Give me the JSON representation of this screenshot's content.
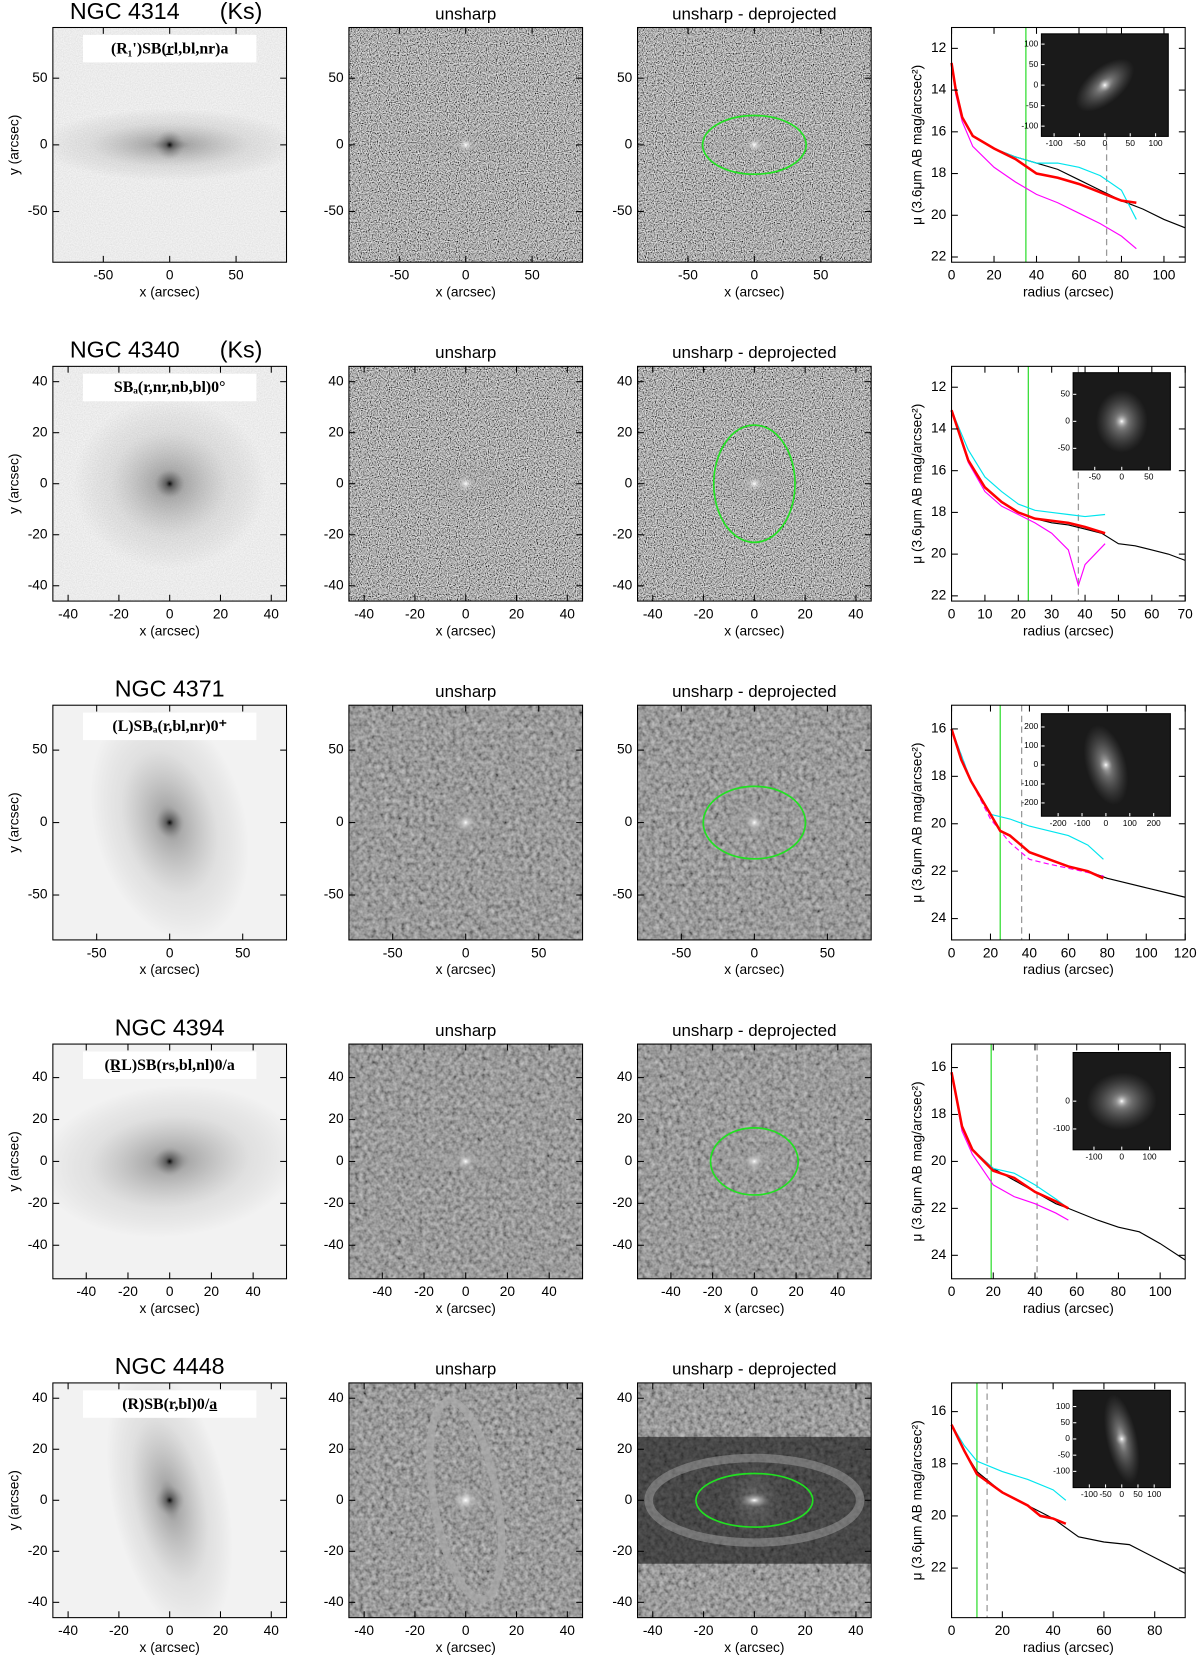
{
  "chart_data": [
    {
      "type": "image",
      "title": "NGC 4314",
      "band": "(Ks)",
      "annotation": "(R₁')SB(r̲l,bl,nr)a",
      "xlabel": "x (arcsec)",
      "ylabel": "y (arcsec)",
      "xlim": [
        -88,
        88
      ],
      "ylim": [
        -88,
        88
      ],
      "xticks": [
        -50,
        0,
        50
      ],
      "yticks": [
        -50,
        0,
        50
      ]
    },
    {
      "type": "image",
      "title": "unsharp",
      "xlabel": "x (arcsec)",
      "xlim": [
        -88,
        88
      ],
      "ylim": [
        -88,
        88
      ],
      "xticks": [
        -50,
        0,
        50
      ],
      "yticks": [
        -50,
        0,
        50
      ]
    },
    {
      "type": "image",
      "title": "unsharp - deprojected",
      "xlabel": "x (arcsec)",
      "xlim": [
        -88,
        88
      ],
      "ylim": [
        -88,
        88
      ],
      "xticks": [
        -50,
        0,
        50
      ],
      "yticks": [
        -50,
        0,
        50
      ],
      "ellipse": [
        39,
        22
      ]
    },
    {
      "type": "line",
      "xlabel": "radius (arcsec)",
      "ylabel": "μ (3.6μm AB mag/arcsec²)",
      "xlim": [
        0,
        110
      ],
      "ylim": [
        22.25,
        11
      ],
      "xticks": [
        0,
        20,
        40,
        60,
        80,
        100
      ],
      "yticks": [
        12,
        14,
        16,
        18,
        20,
        22
      ],
      "series": [
        {
          "color": "#000000",
          "x": [
            0,
            2,
            5,
            10,
            20,
            30,
            40,
            50,
            60,
            70,
            80,
            90,
            100,
            110
          ],
          "values": [
            12.7,
            14,
            15.3,
            16.2,
            16.8,
            17.2,
            17.5,
            17.8,
            18.3,
            18.8,
            19.3,
            19.7,
            20.2,
            20.6
          ]
        },
        {
          "color": "#ff00ff",
          "x": [
            0,
            2,
            5,
            10,
            20,
            30,
            40,
            50,
            60,
            70,
            80,
            87
          ],
          "values": [
            12.7,
            14.2,
            15.5,
            16.7,
            17.7,
            18.4,
            19,
            19.4,
            19.9,
            20.4,
            21,
            21.6
          ]
        },
        {
          "color": "#00e5ee",
          "x": [
            0,
            2,
            5,
            10,
            20,
            30,
            40,
            50,
            60,
            70,
            80,
            87
          ],
          "values": [
            12.7,
            14,
            15.3,
            16.2,
            16.8,
            17.2,
            17.5,
            17.5,
            17.7,
            18.1,
            18.8,
            20.2
          ]
        },
        {
          "color": "#ff0000",
          "x": [
            0,
            2,
            5,
            10,
            20,
            30,
            40,
            50,
            60,
            70,
            80,
            87
          ],
          "values": [
            12.7,
            14,
            15.3,
            16.2,
            16.8,
            17.3,
            18,
            18.2,
            18.5,
            18.9,
            19.3,
            19.4
          ]
        }
      ],
      "vlines": [
        {
          "value": 35,
          "color": "#33dd33"
        },
        {
          "value": 73,
          "color": "#999999",
          "linestyle": "dashed"
        }
      ],
      "inset": {
        "xlim": [
          -125,
          125
        ],
        "ylim": [
          -125,
          125
        ],
        "xticks": [
          -100,
          -50,
          0,
          50,
          100
        ],
        "yticks": [
          -100,
          -50,
          0,
          50,
          100
        ]
      }
    },
    {
      "type": "image",
      "title": "NGC 4340",
      "band": "(Ks)",
      "annotation": "SBₐ(r,nr,nb,bl)0°",
      "xlabel": "x (arcsec)",
      "ylabel": "y (arcsec)",
      "xlim": [
        -46,
        46
      ],
      "ylim": [
        -46,
        46
      ],
      "xticks": [
        -40,
        -20,
        0,
        20,
        40
      ],
      "yticks": [
        -40,
        -20,
        0,
        20,
        40
      ]
    },
    {
      "type": "image",
      "title": "unsharp",
      "xlabel": "x (arcsec)",
      "xlim": [
        -46,
        46
      ],
      "ylim": [
        -46,
        46
      ],
      "xticks": [
        -40,
        -20,
        0,
        20,
        40
      ],
      "yticks": [
        -40,
        -20,
        0,
        20,
        40
      ]
    },
    {
      "type": "image",
      "title": "unsharp - deprojected",
      "xlabel": "x (arcsec)",
      "xlim": [
        -46,
        46
      ],
      "ylim": [
        -46,
        46
      ],
      "xticks": [
        -40,
        -20,
        0,
        20,
        40
      ],
      "yticks": [
        -40,
        -20,
        0,
        20,
        40
      ],
      "ellipse": [
        16,
        23
      ]
    },
    {
      "type": "line",
      "xlabel": "radius (arcsec)",
      "ylabel": "μ (3.6μm AB mag/arcsec²)",
      "xlim": [
        0,
        70
      ],
      "ylim": [
        22.25,
        11
      ],
      "xticks": [
        0,
        10,
        20,
        30,
        40,
        50,
        60,
        70
      ],
      "yticks": [
        12,
        14,
        16,
        18,
        20,
        22
      ],
      "series": [
        {
          "color": "#000000",
          "x": [
            0,
            5,
            10,
            15,
            20,
            25,
            30,
            35,
            40,
            45,
            50,
            55,
            60,
            65,
            70
          ],
          "values": [
            13.1,
            15.5,
            16.8,
            17.5,
            18,
            18.3,
            18.5,
            18.6,
            18.8,
            19,
            19.5,
            19.6,
            19.8,
            20,
            20.3
          ]
        },
        {
          "color": "#ff00ff",
          "x": [
            0,
            5,
            10,
            15,
            20,
            25,
            30,
            35,
            38,
            40,
            46
          ],
          "values": [
            13.1,
            15.6,
            17,
            17.7,
            18.1,
            18.5,
            19,
            19.8,
            21.5,
            20.5,
            19.5
          ]
        },
        {
          "color": "#00e5ee",
          "x": [
            0,
            5,
            10,
            15,
            20,
            25,
            30,
            35,
            40,
            46
          ],
          "values": [
            13.1,
            15,
            16.3,
            17,
            17.6,
            17.9,
            18,
            18.1,
            18.2,
            18.1
          ]
        },
        {
          "color": "#ff0000",
          "x": [
            0,
            5,
            10,
            15,
            20,
            25,
            30,
            35,
            40,
            46
          ],
          "values": [
            13.1,
            15.5,
            16.8,
            17.5,
            18,
            18.3,
            18.4,
            18.5,
            18.7,
            19
          ]
        }
      ],
      "vlines": [
        {
          "value": 23,
          "color": "#33dd33"
        },
        {
          "value": 38,
          "color": "#999999",
          "linestyle": "dashed"
        }
      ],
      "inset": {
        "xlim": [
          -90,
          90
        ],
        "ylim": [
          -90,
          90
        ],
        "xticks": [
          -50,
          0,
          50
        ],
        "yticks": [
          -50,
          0,
          50
        ]
      }
    },
    {
      "type": "image",
      "title": "NGC 4371",
      "annotation": "(L)SBₐ(r,bl,nr)0⁺",
      "xlabel": "x (arcsec)",
      "ylabel": "y (arcsec)",
      "xlim": [
        -80,
        80
      ],
      "ylim": [
        -81,
        81
      ],
      "xticks": [
        -50,
        0,
        50
      ],
      "yticks": [
        -50,
        0,
        50
      ]
    },
    {
      "type": "image",
      "title": "unsharp",
      "xlabel": "x (arcsec)",
      "xlim": [
        -80,
        80
      ],
      "ylim": [
        -81,
        81
      ],
      "xticks": [
        -50,
        0,
        50
      ],
      "yticks": [
        -50,
        0,
        50
      ]
    },
    {
      "type": "image",
      "title": "unsharp - deprojected",
      "xlabel": "x (arcsec)",
      "xlim": [
        -80,
        80
      ],
      "ylim": [
        -81,
        81
      ],
      "xticks": [
        -50,
        0,
        50
      ],
      "yticks": [
        -50,
        0,
        50
      ],
      "ellipse": [
        35,
        25
      ]
    },
    {
      "type": "line",
      "xlabel": "radius (arcsec)",
      "ylabel": "μ (3.6μm AB mag/arcsec²)",
      "xlim": [
        0,
        120
      ],
      "ylim": [
        24.9,
        15
      ],
      "xticks": [
        0,
        20,
        40,
        60,
        80,
        100,
        120
      ],
      "yticks": [
        16,
        18,
        20,
        22,
        24
      ],
      "series": [
        {
          "color": "#000000",
          "x": [
            0,
            5,
            10,
            20,
            25,
            30,
            40,
            50,
            60,
            70,
            80,
            100,
            120
          ],
          "values": [
            16,
            17.3,
            18.2,
            19.6,
            20.3,
            20.5,
            21.2,
            21.5,
            21.8,
            22,
            22.3,
            22.7,
            23.1
          ]
        },
        {
          "color": "#ff00ff",
          "linestyle": "dashed",
          "x": [
            0,
            10,
            20,
            30,
            40,
            50,
            78
          ],
          "values": [
            16,
            18.2,
            19.8,
            20.8,
            21.5,
            21.7,
            22.2
          ]
        },
        {
          "color": "#00e5ee",
          "x": [
            0,
            10,
            20,
            30,
            40,
            50,
            60,
            70,
            78
          ],
          "values": [
            16,
            18.2,
            19.6,
            19.8,
            20.1,
            20.3,
            20.5,
            20.9,
            21.5
          ]
        },
        {
          "color": "#ff0000",
          "x": [
            0,
            5,
            10,
            20,
            25,
            30,
            40,
            50,
            60,
            70,
            78
          ],
          "values": [
            16,
            17.3,
            18.2,
            19.6,
            20.3,
            20.5,
            21.2,
            21.5,
            21.8,
            22,
            22.3
          ]
        }
      ],
      "vlines": [
        {
          "value": 25,
          "color": "#33dd33"
        },
        {
          "value": 36,
          "color": "#999999",
          "linestyle": "dashed"
        }
      ],
      "inset": {
        "xlim": [
          -270,
          270
        ],
        "ylim": [
          -270,
          270
        ],
        "xticks": [
          -200,
          -100,
          0,
          100,
          200
        ],
        "yticks": [
          -200,
          -100,
          0,
          100,
          200
        ]
      }
    },
    {
      "type": "image",
      "title": "NGC 4394",
      "annotation": "(R̲L)SB(rs,bl,nl)0/a",
      "xlabel": "x (arcsec)",
      "ylabel": "y (arcsec)",
      "xlim": [
        -56,
        56
      ],
      "ylim": [
        -56,
        56
      ],
      "xticks": [
        -40,
        -20,
        0,
        20,
        40
      ],
      "yticks": [
        -40,
        -20,
        0,
        20,
        40
      ]
    },
    {
      "type": "image",
      "title": "unsharp",
      "xlabel": "x (arcsec)",
      "xlim": [
        -56,
        56
      ],
      "ylim": [
        -56,
        56
      ],
      "xticks": [
        -40,
        -20,
        0,
        20,
        40
      ],
      "yticks": [
        -40,
        -20,
        0,
        20,
        40
      ]
    },
    {
      "type": "image",
      "title": "unsharp - deprojected",
      "xlabel": "x (arcsec)",
      "xlim": [
        -56,
        56
      ],
      "ylim": [
        -56,
        56
      ],
      "xticks": [
        -40,
        -20,
        0,
        20,
        40
      ],
      "yticks": [
        -40,
        -20,
        0,
        20,
        40
      ],
      "ellipse": [
        21,
        16
      ]
    },
    {
      "type": "line",
      "xlabel": "radius (arcsec)",
      "ylabel": "μ (3.6μm AB mag/arcsec²)",
      "xlim": [
        0,
        112
      ],
      "ylim": [
        25,
        15
      ],
      "xticks": [
        0,
        20,
        40,
        60,
        80,
        100
      ],
      "yticks": [
        16,
        18,
        20,
        22,
        24
      ],
      "series": [
        {
          "color": "#000000",
          "x": [
            0,
            5,
            10,
            20,
            30,
            40,
            50,
            56,
            70,
            80,
            90,
            100,
            112
          ],
          "values": [
            16.2,
            18.5,
            19.5,
            20.3,
            20.8,
            21.3,
            21.8,
            22,
            22.5,
            22.8,
            23,
            23.5,
            24.2
          ]
        },
        {
          "color": "#ff00ff",
          "x": [
            0,
            5,
            10,
            20,
            30,
            40,
            50,
            56
          ],
          "values": [
            16.2,
            18.7,
            19.7,
            21,
            21.5,
            21.8,
            22.2,
            22.5
          ]
        },
        {
          "color": "#00e5ee",
          "x": [
            0,
            5,
            10,
            20,
            30,
            40,
            50,
            56
          ],
          "values": [
            16.2,
            18.5,
            19.5,
            20.3,
            20.5,
            21,
            21.6,
            22
          ]
        },
        {
          "color": "#ff0000",
          "x": [
            0,
            5,
            10,
            20,
            30,
            40,
            50,
            56
          ],
          "values": [
            16.2,
            18.5,
            19.5,
            20.4,
            20.7,
            21.3,
            21.7,
            22
          ]
        }
      ],
      "vlines": [
        {
          "value": 19,
          "color": "#33dd33"
        },
        {
          "value": 41,
          "color": "#999999",
          "linestyle": "dashed"
        }
      ],
      "inset": {
        "xlim": [
          -175,
          175
        ],
        "ylim": [
          -175,
          175
        ],
        "xticks": [
          -100,
          0,
          100
        ],
        "yticks": [
          -100,
          0
        ]
      }
    },
    {
      "type": "image",
      "title": "NGC 4448",
      "annotation": "(R)SB(r,bl)0/a̲",
      "xlabel": "x (arcsec)",
      "ylabel": "y (arcsec)",
      "xlim": [
        -46,
        46
      ],
      "ylim": [
        -46,
        46
      ],
      "xticks": [
        -40,
        -20,
        0,
        20,
        40
      ],
      "yticks": [
        -40,
        -20,
        0,
        20,
        40
      ]
    },
    {
      "type": "image",
      "title": "unsharp",
      "xlabel": "x (arcsec)",
      "xlim": [
        -46,
        46
      ],
      "ylim": [
        -46,
        46
      ],
      "xticks": [
        -40,
        -20,
        0,
        20,
        40
      ],
      "yticks": [
        -40,
        -20,
        0,
        20,
        40
      ]
    },
    {
      "type": "image",
      "title": "unsharp - deprojected",
      "xlabel": "x (arcsec)",
      "xlim": [
        -46,
        46
      ],
      "ylim": [
        -46,
        46
      ],
      "xticks": [
        -40,
        -20,
        0,
        20,
        40
      ],
      "yticks": [
        -40,
        -20,
        0,
        20,
        40
      ],
      "ellipse": [
        23,
        10.5
      ]
    },
    {
      "type": "line",
      "xlabel": "radius (arcsec)",
      "ylabel": "μ (3.6μm AB mag/arcsec²)",
      "xlim": [
        0,
        92
      ],
      "ylim": [
        23.9,
        14.9
      ],
      "xticks": [
        0,
        20,
        40,
        60,
        80
      ],
      "yticks": [
        16,
        18,
        20,
        22
      ],
      "series": [
        {
          "color": "#000000",
          "x": [
            0,
            5,
            10,
            20,
            30,
            40,
            50,
            60,
            70,
            80,
            92
          ],
          "values": [
            16.5,
            17.5,
            18.3,
            19.1,
            19.6,
            20.1,
            20.8,
            21,
            21.1,
            21.6,
            22.2
          ]
        },
        {
          "color": "#00e5ee",
          "x": [
            0,
            5,
            10,
            20,
            30,
            40,
            45
          ],
          "values": [
            16.5,
            17.3,
            17.9,
            18.3,
            18.6,
            19,
            19.4
          ]
        },
        {
          "color": "#ff0000",
          "x": [
            0,
            5,
            10,
            20,
            30,
            35,
            40,
            45
          ],
          "values": [
            16.5,
            17.5,
            18.4,
            19.1,
            19.6,
            20,
            20.1,
            20.3
          ]
        }
      ],
      "vlines": [
        {
          "value": 10,
          "color": "#33dd33"
        },
        {
          "value": 14,
          "color": "#999999",
          "linestyle": "dashed"
        }
      ],
      "inset": {
        "xlim": [
          -150,
          150
        ],
        "ylim": [
          -150,
          150
        ],
        "xticks": [
          -100,
          -50,
          0,
          50,
          100
        ],
        "yticks": [
          -100,
          -50,
          0,
          50,
          100
        ]
      }
    }
  ]
}
